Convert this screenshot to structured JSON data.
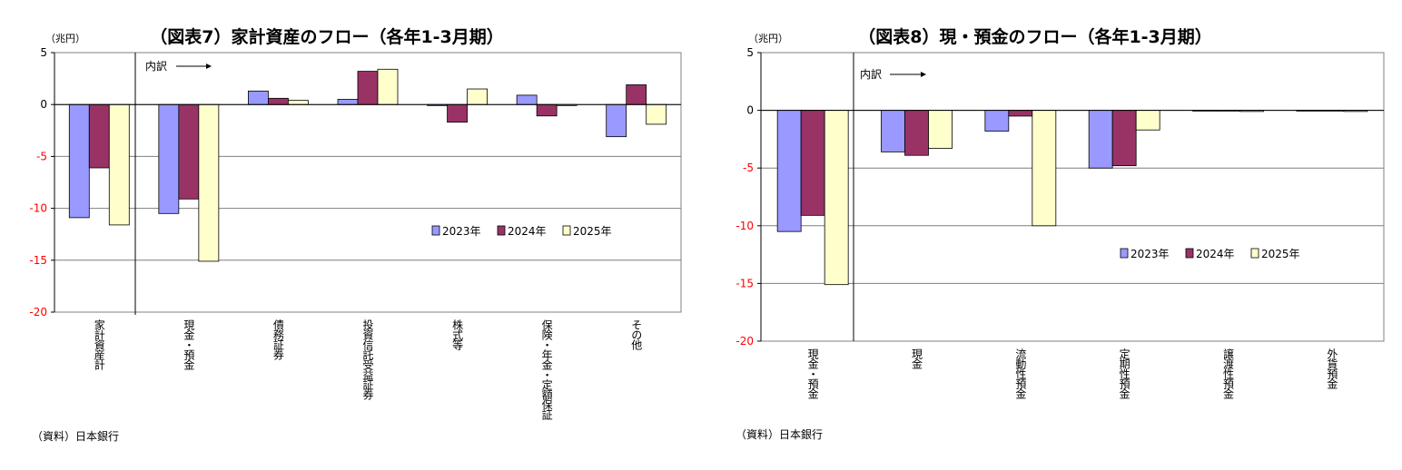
{
  "chart_data": [
    {
      "type": "bar",
      "title": "（図表7）家計資産のフロー（各年1-3月期）",
      "unit_label": "（兆円）",
      "categories": [
        "家計資産計",
        "現金・預金",
        "債務証券",
        "投資信託受益証券",
        "株式等",
        "保険・年金・定額保証",
        "その他"
      ],
      "series": [
        {
          "name": "2023年",
          "values": [
            -10.9,
            -10.5,
            1.3,
            0.5,
            -0.1,
            0.9,
            -3.1
          ]
        },
        {
          "name": "2024年",
          "values": [
            -6.1,
            -9.1,
            0.6,
            3.2,
            -1.7,
            -1.1,
            1.9
          ]
        },
        {
          "name": "2025年",
          "values": [
            -11.6,
            -15.1,
            0.4,
            3.4,
            1.5,
            -0.1,
            -1.9
          ]
        }
      ],
      "ylim": [
        -20,
        5
      ],
      "yticks": [
        5,
        0,
        -5,
        -10,
        -15,
        -20
      ],
      "ytick_labels": [
        "5",
        "0",
        "-5",
        "-10",
        "-15",
        "-20"
      ],
      "breakdown_label": "内訳",
      "legend_position": "lower-right",
      "grid": true,
      "source": "（資料）日本銀行"
    },
    {
      "type": "bar",
      "title": "（図表8）現・預金のフロー（各年1-3月期）",
      "unit_label": "（兆円）",
      "categories": [
        "現金・預金",
        "現金",
        "流動性預金",
        "定期性預金",
        "譲渡性預金",
        "外貨預金"
      ],
      "series": [
        {
          "name": "2023年",
          "values": [
            -10.5,
            -3.6,
            -1.8,
            -5.0,
            0.0,
            0.0
          ]
        },
        {
          "name": "2024年",
          "values": [
            -9.1,
            -3.9,
            -0.5,
            -4.8,
            0.0,
            0.0
          ]
        },
        {
          "name": "2025年",
          "values": [
            -15.1,
            -3.3,
            -10.0,
            -1.7,
            -0.1,
            -0.1
          ]
        }
      ],
      "ylim": [
        -20,
        5
      ],
      "yticks": [
        5,
        0,
        -5,
        -10,
        -15,
        -20
      ],
      "ytick_labels": [
        "5",
        "0",
        "-5",
        "-10",
        "-15",
        "-20"
      ],
      "breakdown_label": "内訳",
      "legend_position": "lower-right",
      "grid": true,
      "source": "（資料）日本銀行"
    }
  ],
  "style": {
    "series_colors": [
      "#9999ff",
      "#993366",
      "#ffffcc"
    ],
    "bar_stroke": "#000000",
    "grid_color": "#7f7f7f",
    "tick_label_color_negative": "#ff0000"
  }
}
